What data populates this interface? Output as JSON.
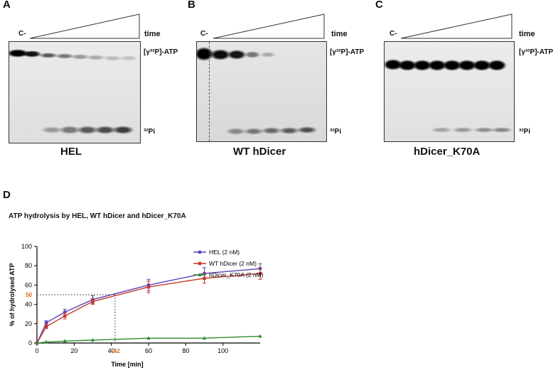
{
  "panels": [
    {
      "letter": "A",
      "control": "C-",
      "time": "time",
      "atp": "[γ³²P]-ATP",
      "pi": "³²Pi",
      "name": "HEL"
    },
    {
      "letter": "B",
      "control": "C-",
      "time": "time",
      "atp": "[γ³²P]-ATP",
      "pi": "³²Pi",
      "name": "WT hDicer"
    },
    {
      "letter": "C",
      "control": "C-",
      "time": "time",
      "atp": "[γ³²P]-ATP",
      "pi": "³²Pi",
      "name": "hDicer_K70A"
    }
  ],
  "panel_d": {
    "letter": "D",
    "title": "ATP hydrolysis by HEL, WT hDicer and hDicer_K70A"
  },
  "colors": {
    "hel": "#5b3fb5",
    "wt": "#c0392b",
    "k70a": "#2e8b2e",
    "marker": "#e06a1b"
  },
  "chart_data": {
    "type": "line",
    "title": "ATP hydrolysis by HEL, WT hDicer and hDicer_K70A",
    "xlabel": "Time [min]",
    "ylabel": "% of hydrolysed ATP",
    "xlim": [
      0,
      120
    ],
    "ylim": [
      0,
      100
    ],
    "xticks": [
      0,
      20,
      40,
      60,
      80,
      100
    ],
    "yticks": [
      0,
      20,
      40,
      60,
      80,
      100
    ],
    "x": [
      0,
      5,
      15,
      30,
      60,
      90,
      120
    ],
    "series": [
      {
        "name": "HEL (2 nM)",
        "values": [
          0,
          21,
          32,
          45,
          60,
          72,
          77
        ],
        "errors": [
          0,
          2,
          3,
          4,
          6,
          6,
          5
        ]
      },
      {
        "name": "WT hDicer (2 nM)",
        "values": [
          0,
          17,
          28,
          43,
          58,
          67,
          72
        ],
        "errors": [
          0,
          2,
          3,
          3,
          6,
          5,
          6
        ]
      },
      {
        "name": "hDicer_K70A (2 nM)",
        "values": [
          0,
          1,
          2,
          3,
          5,
          5,
          7
        ],
        "errors": [
          0,
          0,
          0,
          0,
          0,
          0,
          0
        ]
      }
    ],
    "annotations": {
      "y_marker": "50",
      "x_marker": "~42",
      "y_value": 50,
      "x_value": 42
    }
  }
}
